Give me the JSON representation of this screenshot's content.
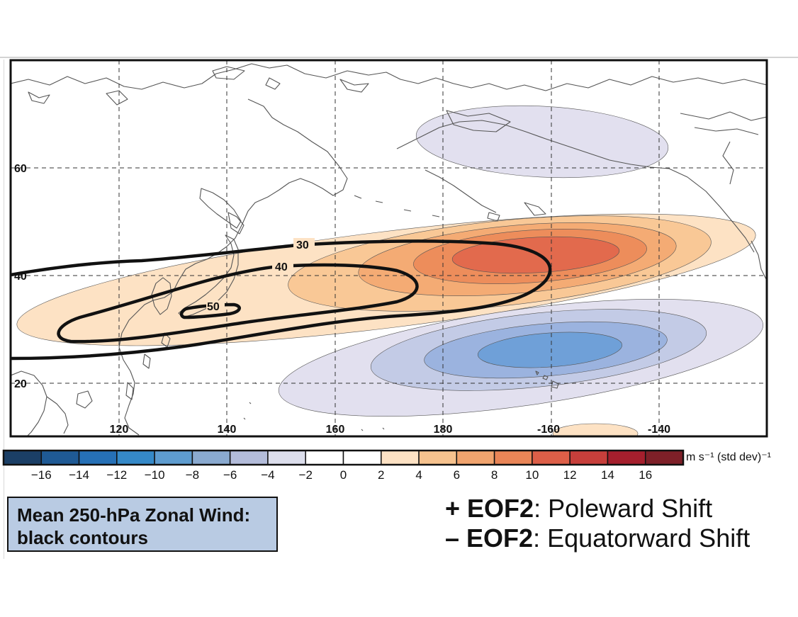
{
  "map": {
    "lat_labels": [
      {
        "lat": 60,
        "text": "60"
      },
      {
        "lat": 40,
        "text": "40"
      },
      {
        "lat": 20,
        "text": "20"
      }
    ],
    "lon_labels": [
      {
        "lon": 120,
        "text": "120"
      },
      {
        "lon": 140,
        "text": "140"
      },
      {
        "lon": 160,
        "text": "160"
      },
      {
        "lon": 180,
        "text": "180"
      },
      {
        "lon": -160,
        "text": "-160"
      },
      {
        "lon": -140,
        "text": "-140"
      }
    ],
    "wind_contours": [
      {
        "value": 30,
        "label": "30"
      },
      {
        "value": 40,
        "label": "40"
      },
      {
        "value": 50,
        "label": "50"
      }
    ],
    "positive_color_levels": [
      "#fde2c4",
      "#f9c896",
      "#f4ab74",
      "#ed8d5b",
      "#e26a4d"
    ],
    "negative_color_levels": [
      "#e2e0ef",
      "#c3cbe6",
      "#9bb3df",
      "#6fa0d8",
      "#4a90d0"
    ],
    "coastline_color": "#555555",
    "wind_contour_color": "#111111"
  },
  "colorbar": {
    "unit_label": "m s⁻¹ (std dev)⁻¹",
    "tick_labels": [
      "−16",
      "−14",
      "−12",
      "−10",
      "−8",
      "−6",
      "−4",
      "−2",
      "0",
      "2",
      "4",
      "6",
      "8",
      "10",
      "12",
      "14",
      "16"
    ],
    "colors": [
      "#1b3f66",
      "#1f5a95",
      "#2670b6",
      "#3589c8",
      "#5e9ccf",
      "#8aaad0",
      "#b3bcda",
      "#dcdeec",
      "#ffffff",
      "#ffffff",
      "#fde2c4",
      "#f6c28e",
      "#f1a46e",
      "#e98557",
      "#dd5f48",
      "#c73f3b",
      "#a51f2d",
      "#7e2028"
    ]
  },
  "legend": {
    "line1": "Mean 250-hPa Zonal Wind:",
    "line2": "black contours"
  },
  "eof": {
    "pos_sign": "+ ",
    "pos_name": "EOF2",
    "pos_desc": ": Poleward Shift",
    "neg_sign": "– ",
    "neg_name": "EOF2",
    "neg_desc": ": Equatorward Shift"
  }
}
